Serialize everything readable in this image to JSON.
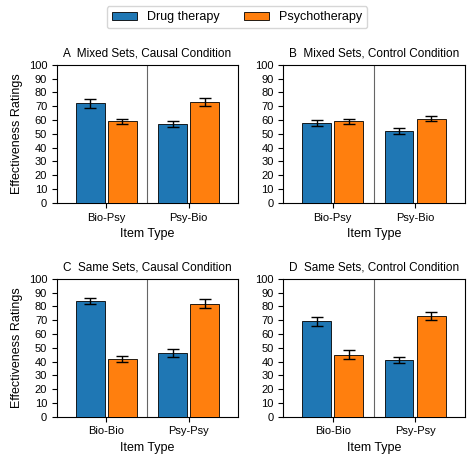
{
  "chart_data": [
    {
      "type": "bar",
      "title": "A  Mixed Sets, Causal Condition",
      "categories": [
        "Bio-Psy",
        "Psy-Bio"
      ],
      "series": [
        {
          "name": "Drug therapy",
          "values": [
            72,
            57
          ],
          "errors": [
            3,
            2
          ]
        },
        {
          "name": "Psychotherapy",
          "values": [
            59,
            73
          ],
          "errors": [
            2,
            3
          ]
        }
      ],
      "xlabel": "Item Type",
      "ylabel": "Effectiveness Ratings",
      "ylim": [
        0,
        100
      ],
      "yticks": [
        0,
        10,
        20,
        30,
        40,
        50,
        60,
        70,
        80,
        90,
        100
      ],
      "legend": "upper center"
    },
    {
      "type": "bar",
      "title": "B  Mixed Sets, Control Condition",
      "categories": [
        "Bio-Psy",
        "Psy-Bio"
      ],
      "series": [
        {
          "name": "Drug therapy",
          "values": [
            58,
            52
          ],
          "errors": [
            2,
            2
          ]
        },
        {
          "name": "Psychotherapy",
          "values": [
            59,
            61
          ],
          "errors": [
            2,
            2
          ]
        }
      ],
      "xlabel": "Item Type",
      "ylim": [
        0,
        100
      ],
      "yticks": [
        0,
        10,
        20,
        30,
        40,
        50,
        60,
        70,
        80,
        90,
        100
      ]
    },
    {
      "type": "bar",
      "title": "C  Same Sets, Causal Condition",
      "categories": [
        "Bio-Bio",
        "Psy-Psy"
      ],
      "series": [
        {
          "name": "Drug therapy",
          "values": [
            84,
            46
          ],
          "errors": [
            2,
            3
          ]
        },
        {
          "name": "Psychotherapy",
          "values": [
            42,
            82
          ],
          "errors": [
            2,
            3
          ]
        }
      ],
      "xlabel": "Item Type",
      "ylabel": "Effectiveness Ratings",
      "ylim": [
        0,
        100
      ],
      "yticks": [
        0,
        10,
        20,
        30,
        40,
        50,
        60,
        70,
        80,
        90,
        100
      ]
    },
    {
      "type": "bar",
      "title": "D  Same Sets, Control Condition",
      "categories": [
        "Bio-Bio",
        "Psy-Psy"
      ],
      "series": [
        {
          "name": "Drug therapy",
          "values": [
            69,
            41
          ],
          "errors": [
            3,
            2
          ]
        },
        {
          "name": "Psychotherapy",
          "values": [
            45,
            73
          ],
          "errors": [
            3,
            3
          ]
        }
      ],
      "xlabel": "Item Type",
      "ylim": [
        0,
        100
      ],
      "yticks": [
        0,
        10,
        20,
        30,
        40,
        50,
        60,
        70,
        80,
        90,
        100
      ]
    }
  ]
}
